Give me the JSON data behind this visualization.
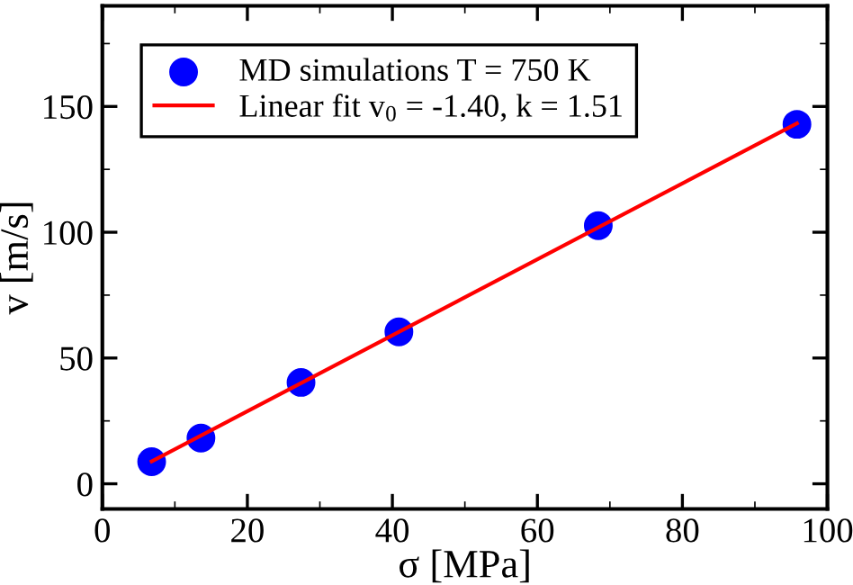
{
  "chart_data": {
    "type": "scatter",
    "xlabel": "σ [MPa]",
    "ylabel": "v [m/s]",
    "xlim": [
      0,
      100
    ],
    "xticks": [
      0,
      20,
      40,
      60,
      80,
      100
    ],
    "ylim": [
      -10,
      190
    ],
    "yticks": [
      0,
      50,
      100,
      150
    ],
    "grid": false,
    "legend": "top left",
    "series": [
      {
        "name": "MD simulations T = 750 K",
        "marker": "circle",
        "color": "#0000ff",
        "x": [
          6.8,
          13.6,
          27.4,
          40.9,
          68.4,
          95.8
        ],
        "values": [
          8.8,
          18.2,
          40.3,
          60.4,
          102.6,
          142.9
        ]
      },
      {
        "name": "Linear fit v$_{0}$ = -1.40, k = 1.51",
        "type": "line",
        "color": "#ff0000",
        "line_style": "solid",
        "marker": "none",
        "x": [
          6.8,
          95.8
        ],
        "values": [
          8.9,
          143.3
        ]
      }
    ]
  }
}
